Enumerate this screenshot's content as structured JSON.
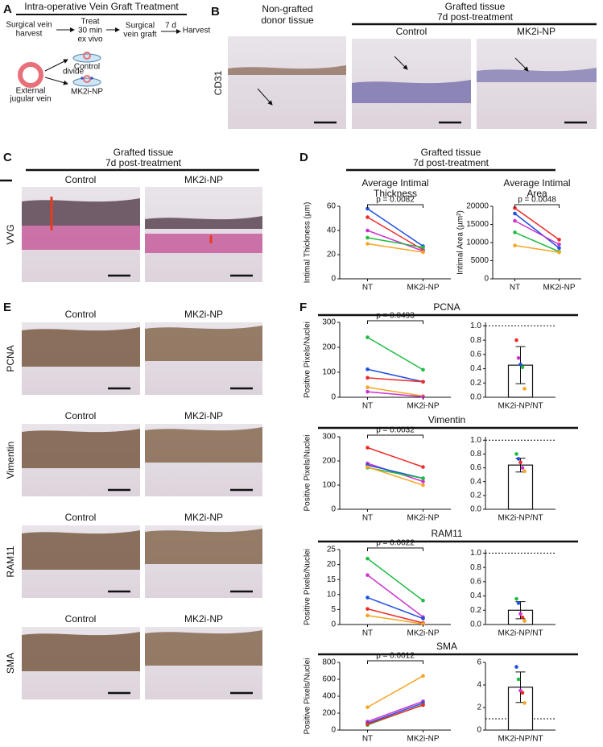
{
  "panel_a": {
    "letter": "A",
    "title": "Intra-operative Vein Graft Treatment",
    "step1": [
      "Surgical  vein",
      "harvest"
    ],
    "step2": [
      "Treat",
      "30 min",
      "ex vivo"
    ],
    "step3": [
      "Surgical",
      "vein graft"
    ],
    "step4": "7 d",
    "step5": "Harvest",
    "vessel": [
      "External",
      "jugular vein"
    ],
    "divide": "divide",
    "group1": "Control",
    "group2": "MK2i-NP"
  },
  "panel_b": {
    "letter": "B",
    "col1": [
      "Non-grafted",
      "donor tissue"
    ],
    "header": [
      "Grafted tissue",
      "7d post-treatment"
    ],
    "col2": "Control",
    "col3": "MK2i-NP",
    "stain": "CD31"
  },
  "panel_c": {
    "letter": "C",
    "header": [
      "Grafted tissue",
      "7d post-treatment"
    ],
    "col1": "Control",
    "col2": "MK2i-NP",
    "stain": "VVG"
  },
  "panel_d": {
    "letter": "D",
    "header": [
      "Grafted tissue",
      "7d post-treatment"
    ]
  },
  "panel_e": {
    "letter": "E",
    "rows": [
      {
        "stain": "PCNA",
        "col1": "Control",
        "col2": "MK2i-NP"
      },
      {
        "stain": "Vimentin",
        "col1": "Control",
        "col2": "MK2i-NP"
      },
      {
        "stain": "RAM11",
        "col1": "Control",
        "col2": "MK2i-NP"
      },
      {
        "stain": "SMA",
        "col1": "Control",
        "col2": "MK2i-NP"
      }
    ]
  },
  "panel_f": {
    "letter": "F"
  },
  "chart_data": [
    {
      "type": "line",
      "title": [
        "Average Intimal",
        "Thickness"
      ],
      "y_label": "Intimal Thickness (µm)",
      "categories": [
        "NT",
        "MK2i-NP"
      ],
      "series": [
        {
          "color": "#1f4fe0",
          "values": [
            58,
            27
          ]
        },
        {
          "color": "#ee2a2a",
          "values": [
            51,
            24
          ]
        },
        {
          "color": "#cc33cc",
          "values": [
            40,
            23
          ]
        },
        {
          "color": "#22bb44",
          "values": [
            34,
            26
          ]
        },
        {
          "color": "#f5a623",
          "values": [
            29,
            22
          ]
        }
      ],
      "ylim": [
        0,
        60
      ],
      "yticks": [
        0,
        20,
        40,
        60
      ],
      "annotation": "p = 0.0082"
    },
    {
      "type": "line",
      "title": [
        "Average Intimal",
        "Area"
      ],
      "y_label": "Intimal Area (µm²)",
      "categories": [
        "NT",
        "MK2i-NP"
      ],
      "series": [
        {
          "color": "#ee2a2a",
          "values": [
            19500,
            10800
          ]
        },
        {
          "color": "#1f4fe0",
          "values": [
            18000,
            8500
          ]
        },
        {
          "color": "#cc33cc",
          "values": [
            16000,
            9500
          ]
        },
        {
          "color": "#22bb44",
          "values": [
            12800,
            7500
          ]
        },
        {
          "color": "#f5a623",
          "values": [
            9200,
            7300
          ]
        }
      ],
      "ylim": [
        0,
        20000
      ],
      "yticks": [
        0,
        5000,
        10000,
        15000,
        20000
      ],
      "annotation": "p = 0.0048"
    },
    {
      "type": "line",
      "title": "PCNA",
      "y_label": "Positive Pixels/Nuclei",
      "categories": [
        "NT",
        "MK2i-NP"
      ],
      "series": [
        {
          "color": "#22bb44",
          "values": [
            240,
            110
          ]
        },
        {
          "color": "#1f4fe0",
          "values": [
            112,
            62
          ]
        },
        {
          "color": "#ee2a2a",
          "values": [
            78,
            62
          ]
        },
        {
          "color": "#f5a623",
          "values": [
            40,
            5
          ]
        },
        {
          "color": "#cc33cc",
          "values": [
            22,
            2
          ]
        }
      ],
      "ylim": [
        0,
        300
      ],
      "yticks": [
        0,
        100,
        200,
        300
      ],
      "annotation": "p = 0.0493"
    },
    {
      "type": "bar",
      "categories": [
        "MK2i-NP/NT"
      ],
      "values": [
        0.45
      ],
      "errors": [
        0.26
      ],
      "color": "#ffffff",
      "points": [
        {
          "color": "#ee2a2a",
          "value": 0.8
        },
        {
          "color": "#cc33cc",
          "value": 0.55
        },
        {
          "color": "#1f4fe0",
          "value": 0.46
        },
        {
          "color": "#22bb44",
          "value": 0.42
        },
        {
          "color": "#f5a623",
          "value": 0.12
        }
      ],
      "ylim": [
        0,
        1.05
      ],
      "yticks": [
        {
          "value": 0,
          "label": "0.0"
        },
        0.2,
        0.4,
        0.6,
        0.8,
        {
          "value": 1,
          "label": "1.0"
        }
      ],
      "reference_line": 1
    },
    {
      "type": "line",
      "title": "Vimentin",
      "y_label": "Positive Pixels/Nuclei",
      "categories": [
        "NT",
        "MK2i-NP"
      ],
      "series": [
        {
          "color": "#ee2a2a",
          "values": [
            255,
            175
          ]
        },
        {
          "color": "#cc33cc",
          "values": [
            190,
            115
          ]
        },
        {
          "color": "#1f4fe0",
          "values": [
            183,
            128
          ]
        },
        {
          "color": "#22bb44",
          "values": [
            172,
            128
          ]
        },
        {
          "color": "#f5a623",
          "values": [
            175,
            100
          ]
        }
      ],
      "ylim": [
        0,
        300
      ],
      "yticks": [
        0,
        100,
        200,
        300
      ],
      "annotation": "p = 0.0032"
    },
    {
      "type": "bar",
      "categories": [
        "MK2i-NP/NT"
      ],
      "values": [
        0.64
      ],
      "errors": [
        0.1
      ],
      "color": "#ffffff",
      "points": [
        {
          "color": "#22bb44",
          "value": 0.8
        },
        {
          "color": "#1f4fe0",
          "value": 0.73
        },
        {
          "color": "#ee2a2a",
          "value": 0.68
        },
        {
          "color": "#cc33cc",
          "value": 0.6
        },
        {
          "color": "#f5a623",
          "value": 0.55
        }
      ],
      "ylim": [
        0,
        1.05
      ],
      "yticks": [
        {
          "value": 0,
          "label": "0.0"
        },
        0.2,
        0.4,
        0.6,
        0.8,
        {
          "value": 1,
          "label": "1.0"
        }
      ],
      "reference_line": 1
    },
    {
      "type": "line",
      "title": "RAM11",
      "y_label": "Positive Pixels/Nuclei",
      "categories": [
        "NT",
        "MK2i-NP"
      ],
      "series": [
        {
          "color": "#22bb44",
          "values": [
            22,
            8
          ]
        },
        {
          "color": "#cc33cc",
          "values": [
            16.5,
            2.5
          ]
        },
        {
          "color": "#1f4fe0",
          "values": [
            9,
            2
          ]
        },
        {
          "color": "#ee2a2a",
          "values": [
            5.2,
            0.5
          ]
        },
        {
          "color": "#f5a623",
          "values": [
            3,
            0.2
          ]
        }
      ],
      "ylim": [
        0,
        25
      ],
      "yticks": [
        0,
        5,
        10,
        15,
        20,
        25
      ],
      "annotation": "p = 0.0022"
    },
    {
      "type": "bar",
      "categories": [
        "MK2i-NP/NT"
      ],
      "values": [
        0.2
      ],
      "errors": [
        0.12
      ],
      "color": "#ffffff",
      "points": [
        {
          "color": "#22bb44",
          "value": 0.36
        },
        {
          "color": "#1f4fe0",
          "value": 0.3
        },
        {
          "color": "#cc33cc",
          "value": 0.15
        },
        {
          "color": "#ee2a2a",
          "value": 0.1
        },
        {
          "color": "#f5a623",
          "value": 0.05
        }
      ],
      "ylim": [
        0,
        1.05
      ],
      "yticks": [
        {
          "value": 0,
          "label": "0.0"
        },
        0.2,
        0.4,
        0.6,
        0.8,
        {
          "value": 1,
          "label": "1.0"
        }
      ],
      "reference_line": 1
    },
    {
      "type": "line",
      "title": "SMA",
      "y_label": "Positive Pixels/Nuclei",
      "categories": [
        "NT",
        "MK2i-NP"
      ],
      "series": [
        {
          "color": "#f5a623",
          "values": [
            270,
            640
          ]
        },
        {
          "color": "#cc33cc",
          "values": [
            100,
            340
          ]
        },
        {
          "color": "#1f4fe0",
          "values": [
            80,
            320
          ]
        },
        {
          "color": "#22bb44",
          "values": [
            60,
            300
          ]
        },
        {
          "color": "#ee2a2a",
          "values": [
            70,
            295
          ]
        }
      ],
      "ylim": [
        0,
        800
      ],
      "yticks": [
        0,
        200,
        400,
        600,
        800
      ],
      "annotation": "p = 0.0012"
    },
    {
      "type": "bar",
      "categories": [
        "MK2i-NP/NT"
      ],
      "values": [
        3.8
      ],
      "errors": [
        1.35
      ],
      "color": "#ffffff",
      "points": [
        {
          "color": "#1f4fe0",
          "value": 5.6
        },
        {
          "color": "#22bb44",
          "value": 4.5
        },
        {
          "color": "#cc33cc",
          "value": 3.5
        },
        {
          "color": "#ee2a2a",
          "value": 3.3
        },
        {
          "color": "#f5a623",
          "value": 2.4
        }
      ],
      "ylim": [
        0,
        6
      ],
      "yticks": [
        0,
        2,
        4,
        6
      ],
      "reference_line": 1
    }
  ]
}
